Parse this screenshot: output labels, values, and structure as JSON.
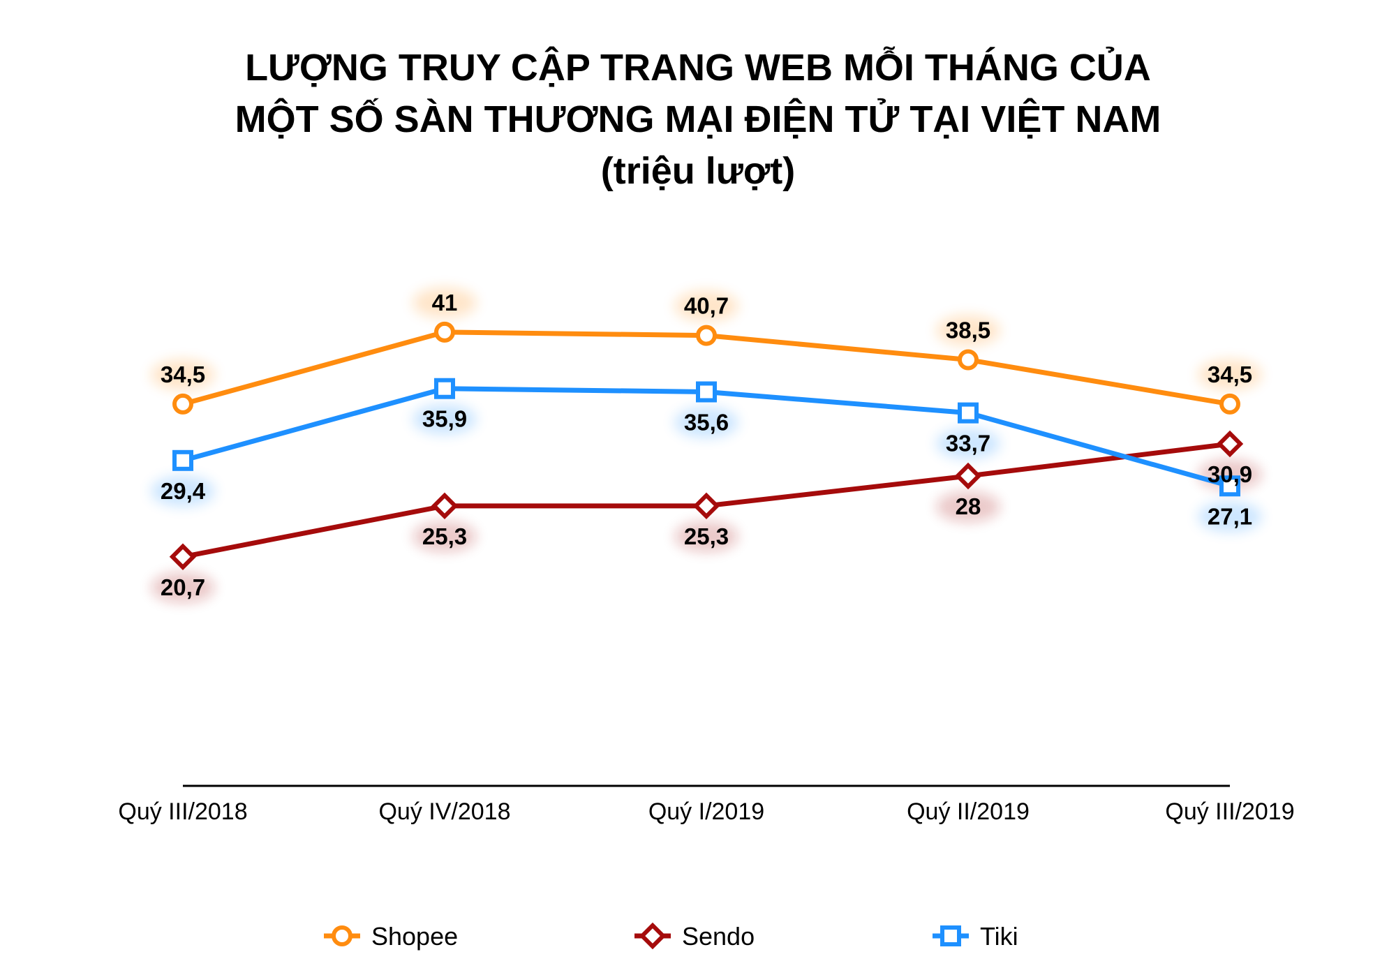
{
  "chart_data": {
    "type": "line",
    "title_lines": [
      "LƯỢNG TRUY CẬP TRANG WEB MỖI THÁNG CỦA",
      "MỘT SỐ SÀN THƯƠNG MẠI ĐIỆN TỬ TẠI VIỆT NAM",
      "(triệu lượt)"
    ],
    "categories": [
      "Quý III/2018",
      "Quý IV/2018",
      "Quý I/2019",
      "Quý II/2019",
      "Quý III/2019"
    ],
    "series": [
      {
        "name": "Shopee",
        "values": [
          34.5,
          41,
          40.7,
          38.5,
          34.5
        ],
        "labels": [
          "34,5",
          "41",
          "40,7",
          "38,5",
          "34,5"
        ],
        "color": "#FF8C0F",
        "marker": "circle",
        "label_position": "above"
      },
      {
        "name": "Sendo",
        "values": [
          20.7,
          25.3,
          25.3,
          28,
          30.9
        ],
        "labels": [
          "20,7",
          "25,3",
          "25,3",
          "28",
          "30,9"
        ],
        "color": "#A50B0B",
        "marker": "diamond",
        "label_position": "below"
      },
      {
        "name": "Tiki",
        "values": [
          29.4,
          35.9,
          35.6,
          33.7,
          27.1
        ],
        "labels": [
          "29,4",
          "35,9",
          "35,6",
          "33,7",
          "27,1"
        ],
        "color": "#1E90FF",
        "marker": "square",
        "label_position": "below"
      }
    ],
    "ylim": [
      0,
      42
    ],
    "xlabel": "",
    "ylabel": "",
    "grid": false,
    "legend_position": "bottom"
  }
}
